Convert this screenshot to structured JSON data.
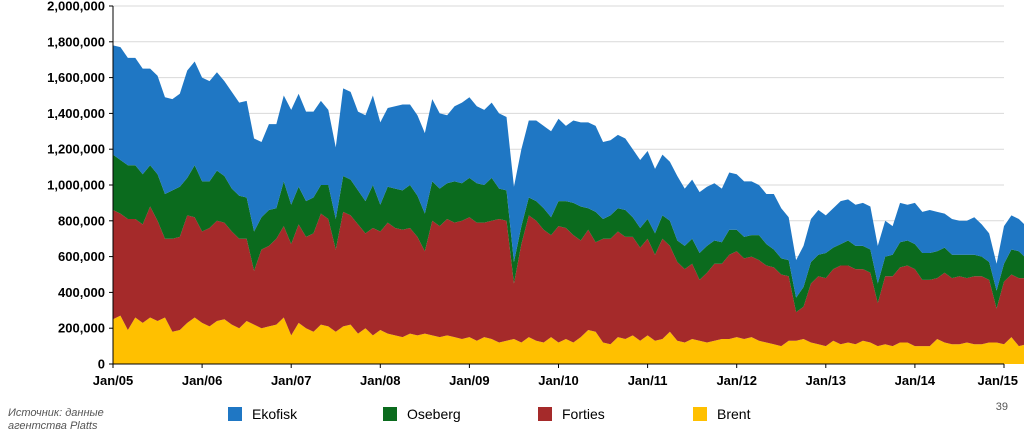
{
  "source_text": "Источник: данные агентства Platts",
  "page_number": "39",
  "chart_data": {
    "type": "area",
    "stacked": true,
    "title": "",
    "xlabel": "",
    "ylabel": "",
    "ylim": [
      0,
      2000000
    ],
    "y_ticks": [
      "0",
      "200,000",
      "400,000",
      "600,000",
      "800,000",
      "1,000,000",
      "1,200,000",
      "1,400,000",
      "1,600,000",
      "1,800,000",
      "2,000,000"
    ],
    "x_ticks": [
      "Jan/05",
      "Jan/06",
      "Jan/07",
      "Jan/08",
      "Jan/09",
      "Jan/10",
      "Jan/11",
      "Jan/12",
      "Jan/13",
      "Jan/14",
      "Jan/15"
    ],
    "x_start": "Jan/05",
    "x_frequency": "monthly",
    "grid": "horizontal",
    "legend_position": "bottom",
    "series": [
      {
        "name": "Brent",
        "color": "#FFC000",
        "values": [
          250000,
          270000,
          190000,
          260000,
          230000,
          260000,
          240000,
          260000,
          180000,
          190000,
          230000,
          260000,
          230000,
          210000,
          240000,
          250000,
          220000,
          200000,
          240000,
          220000,
          200000,
          210000,
          220000,
          260000,
          160000,
          230000,
          200000,
          180000,
          220000,
          210000,
          180000,
          210000,
          220000,
          170000,
          200000,
          160000,
          190000,
          170000,
          160000,
          150000,
          170000,
          160000,
          170000,
          160000,
          150000,
          160000,
          150000,
          140000,
          150000,
          130000,
          150000,
          140000,
          120000,
          130000,
          140000,
          120000,
          150000,
          130000,
          120000,
          150000,
          120000,
          140000,
          120000,
          150000,
          190000,
          180000,
          120000,
          110000,
          150000,
          140000,
          160000,
          130000,
          160000,
          130000,
          140000,
          180000,
          130000,
          120000,
          140000,
          130000,
          120000,
          130000,
          140000,
          140000,
          150000,
          140000,
          150000,
          130000,
          120000,
          110000,
          100000,
          130000,
          130000,
          140000,
          120000,
          110000,
          100000,
          130000,
          110000,
          120000,
          110000,
          130000,
          120000,
          100000,
          110000,
          100000,
          120000,
          120000,
          100000,
          100000,
          100000,
          140000,
          120000,
          110000,
          110000,
          120000,
          110000,
          110000,
          120000,
          120000,
          110000,
          150000,
          100000,
          110000,
          140000,
          120000,
          130000,
          110000,
          120000
        ],
        "comment": ""
      },
      {
        "name": "Forties",
        "color": "#A52A2A",
        "values": [
          610000,
          570000,
          620000,
          550000,
          550000,
          620000,
          560000,
          440000,
          520000,
          520000,
          600000,
          560000,
          510000,
          550000,
          560000,
          540000,
          520000,
          500000,
          460000,
          300000,
          440000,
          450000,
          480000,
          510000,
          510000,
          550000,
          510000,
          550000,
          620000,
          600000,
          460000,
          640000,
          610000,
          610000,
          530000,
          600000,
          550000,
          620000,
          600000,
          600000,
          590000,
          550000,
          460000,
          640000,
          620000,
          650000,
          640000,
          660000,
          670000,
          660000,
          640000,
          660000,
          690000,
          670000,
          310000,
          550000,
          680000,
          670000,
          630000,
          570000,
          650000,
          620000,
          600000,
          540000,
          560000,
          500000,
          580000,
          590000,
          590000,
          570000,
          550000,
          520000,
          540000,
          480000,
          560000,
          480000,
          440000,
          410000,
          420000,
          340000,
          390000,
          430000,
          420000,
          470000,
          480000,
          450000,
          450000,
          450000,
          430000,
          430000,
          400000,
          360000,
          160000,
          180000,
          330000,
          380000,
          380000,
          400000,
          440000,
          430000,
          420000,
          400000,
          390000,
          240000,
          380000,
          390000,
          420000,
          430000,
          430000,
          370000,
          370000,
          340000,
          390000,
          370000,
          380000,
          360000,
          380000,
          380000,
          350000,
          190000,
          350000,
          350000,
          380000,
          370000,
          360000,
          360000,
          330000,
          350000,
          350000
        ],
        "comment": ""
      },
      {
        "name": "Oseberg",
        "color": "#0B6B1E",
        "values": [
          310000,
          300000,
          300000,
          300000,
          280000,
          230000,
          260000,
          250000,
          270000,
          280000,
          210000,
          290000,
          280000,
          260000,
          280000,
          260000,
          240000,
          240000,
          230000,
          220000,
          180000,
          200000,
          170000,
          250000,
          220000,
          210000,
          200000,
          200000,
          160000,
          190000,
          170000,
          200000,
          200000,
          190000,
          180000,
          240000,
          150000,
          200000,
          220000,
          220000,
          240000,
          230000,
          210000,
          220000,
          210000,
          200000,
          230000,
          210000,
          220000,
          220000,
          210000,
          240000,
          170000,
          170000,
          120000,
          100000,
          100000,
          110000,
          120000,
          100000,
          140000,
          150000,
          180000,
          190000,
          120000,
          170000,
          110000,
          130000,
          130000,
          150000,
          110000,
          110000,
          110000,
          120000,
          130000,
          140000,
          120000,
          130000,
          140000,
          150000,
          150000,
          130000,
          120000,
          140000,
          120000,
          120000,
          120000,
          140000,
          120000,
          100000,
          90000,
          90000,
          80000,
          110000,
          120000,
          120000,
          140000,
          120000,
          120000,
          140000,
          130000,
          130000,
          130000,
          110000,
          110000,
          120000,
          140000,
          140000,
          140000,
          150000,
          150000,
          150000,
          140000,
          130000,
          120000,
          130000,
          120000,
          110000,
          100000,
          100000,
          100000,
          140000,
          150000,
          110000,
          120000,
          120000,
          120000,
          110000,
          120000
        ],
        "comment": ""
      },
      {
        "name": "Ekofisk",
        "color": "#1F77C4",
        "values": [
          610000,
          630000,
          600000,
          600000,
          590000,
          540000,
          550000,
          540000,
          510000,
          520000,
          600000,
          580000,
          580000,
          560000,
          550000,
          530000,
          540000,
          520000,
          540000,
          520000,
          420000,
          480000,
          470000,
          480000,
          530000,
          520000,
          500000,
          480000,
          470000,
          420000,
          400000,
          490000,
          490000,
          440000,
          480000,
          500000,
          460000,
          440000,
          460000,
          480000,
          450000,
          450000,
          450000,
          460000,
          420000,
          380000,
          420000,
          450000,
          450000,
          430000,
          420000,
          420000,
          420000,
          410000,
          420000,
          430000,
          430000,
          450000,
          460000,
          480000,
          460000,
          420000,
          460000,
          470000,
          480000,
          480000,
          430000,
          420000,
          410000,
          400000,
          380000,
          380000,
          380000,
          360000,
          340000,
          330000,
          360000,
          320000,
          330000,
          340000,
          330000,
          320000,
          300000,
          320000,
          310000,
          310000,
          300000,
          280000,
          280000,
          310000,
          280000,
          240000,
          210000,
          230000,
          240000,
          250000,
          210000,
          220000,
          240000,
          230000,
          230000,
          240000,
          240000,
          210000,
          200000,
          160000,
          220000,
          200000,
          230000,
          230000,
          240000,
          220000,
          190000,
          200000,
          190000,
          190000,
          210000,
          180000,
          160000,
          150000,
          210000,
          190000,
          180000,
          180000,
          180000,
          170000,
          170000,
          140000,
          140000
        ],
        "comment": ""
      }
    ]
  }
}
